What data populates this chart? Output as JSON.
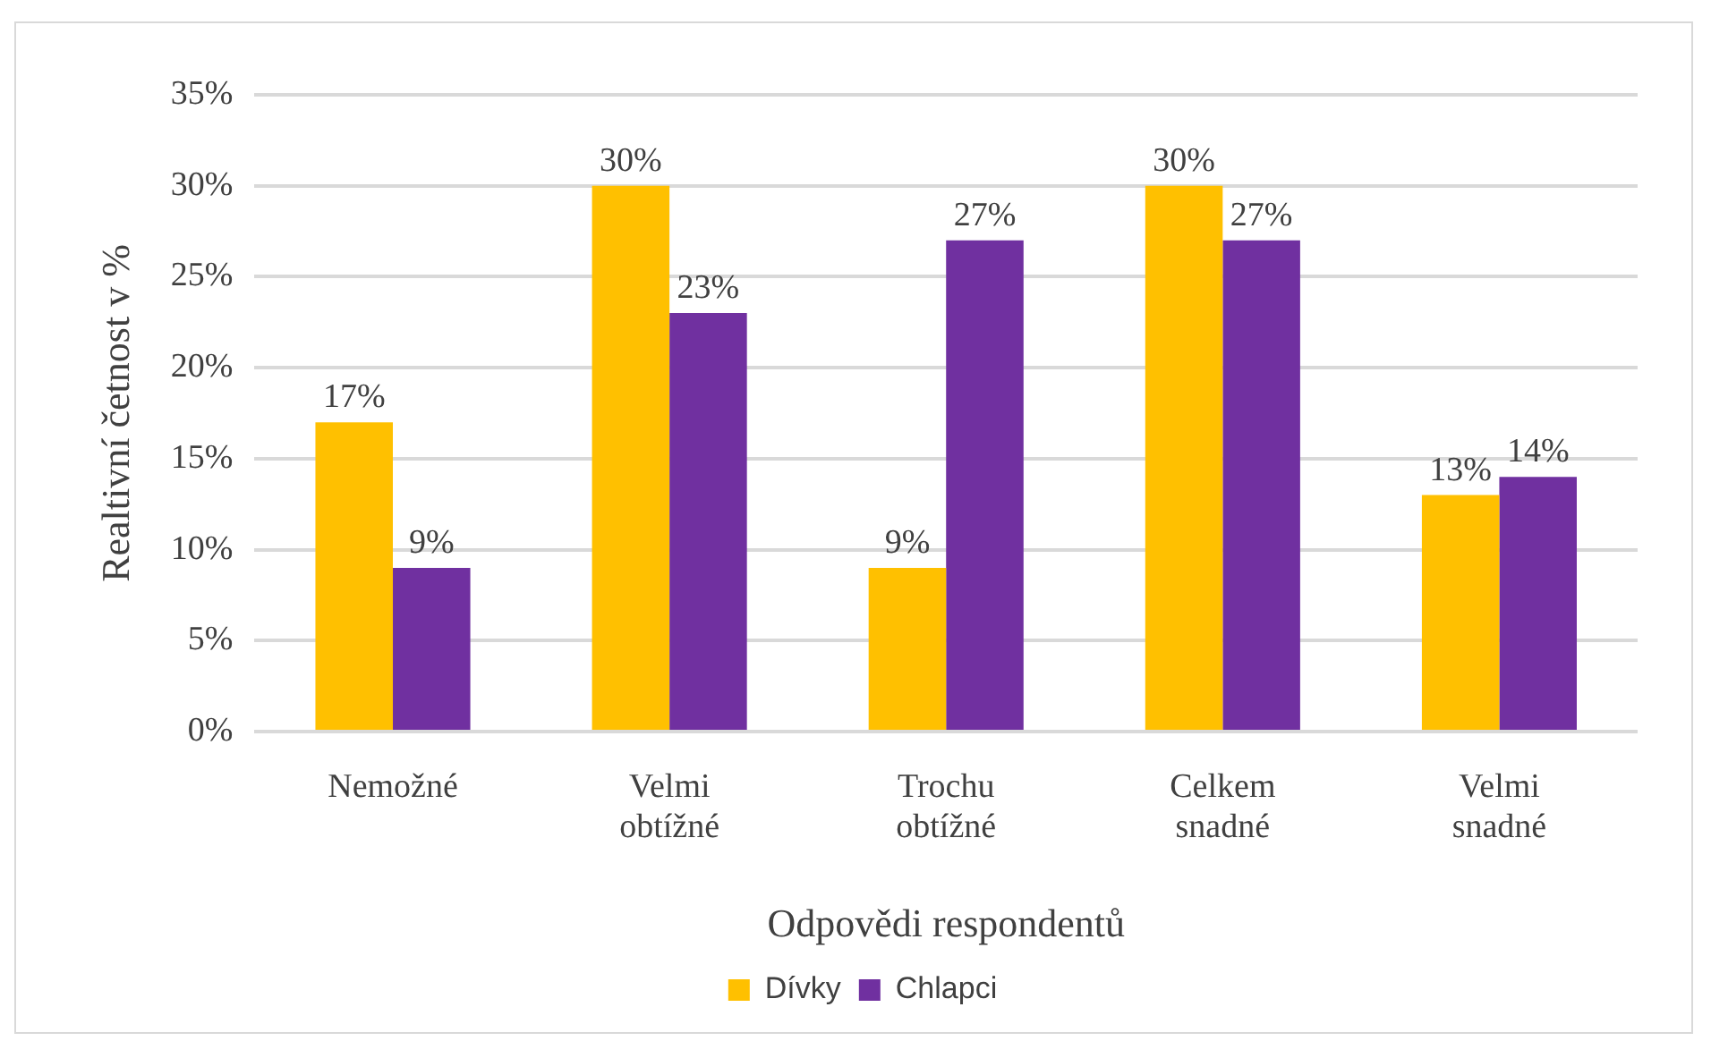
{
  "chart_data": {
    "type": "bar",
    "xlabel": "Odpovědi respondentů",
    "ylabel": "Realtivní četnost v %",
    "categories": [
      "Nemožné",
      "Velmi obtížné",
      "Trochu obtížné",
      "Celkem snadné",
      "Velmi snadné"
    ],
    "series": [
      {
        "name": "Dívky",
        "color": "#ffc000",
        "values": [
          17,
          30,
          9,
          30,
          13
        ],
        "value_labels": [
          "17%",
          "30%",
          "9%",
          "30%",
          "13%"
        ]
      },
      {
        "name": "Chlapci",
        "color": "#7030a0",
        "values": [
          9,
          23,
          27,
          27,
          14
        ],
        "value_labels": [
          "9%",
          "23%",
          "27%",
          "27%",
          "14%"
        ]
      }
    ],
    "ylim": [
      0,
      35
    ],
    "yticks": [
      {
        "value": 0,
        "label": "0%"
      },
      {
        "value": 5,
        "label": "5%"
      },
      {
        "value": 10,
        "label": "10%"
      },
      {
        "value": 15,
        "label": "15%"
      },
      {
        "value": 20,
        "label": "20%"
      },
      {
        "value": 25,
        "label": "25%"
      },
      {
        "value": 30,
        "label": "30%"
      },
      {
        "value": 35,
        "label": "35%"
      }
    ],
    "grid": "y",
    "legend": "bottom"
  }
}
